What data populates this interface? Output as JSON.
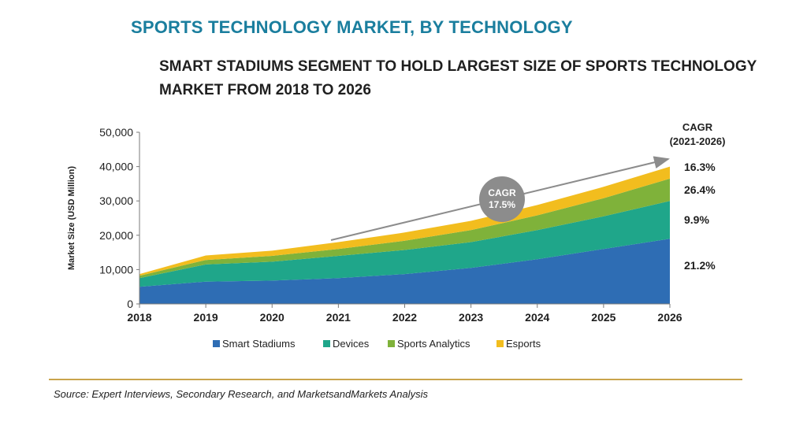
{
  "header": {
    "title": "SPORTS TECHNOLOGY MARKET, BY TECHNOLOGY",
    "subtitle": "SMART STADIUMS SEGMENT TO HOLD LARGEST SIZE OF SPORTS TECHNOLOGY MARKET FROM 2018 TO 2026"
  },
  "source": "Source: Expert Interviews, Secondary Research, and MarketsandMarkets Analysis",
  "chart_data": {
    "type": "area",
    "stacked": true,
    "x": [
      "2018",
      "2019",
      "2020",
      "2021",
      "2022",
      "2023",
      "2024",
      "2025",
      "2026"
    ],
    "ylabel": "Market Size (USD Million)",
    "ylim": [
      0,
      50000
    ],
    "yticks": [
      "0",
      "10,000",
      "20,000",
      "30,000",
      "40,000",
      "50,000"
    ],
    "series": [
      {
        "name": "Smart Stadiums",
        "color": "#2e6db4",
        "values": [
          5000,
          6500,
          6800,
          7500,
          8700,
          10500,
          13000,
          16000,
          19000
        ]
      },
      {
        "name": "Devices",
        "color": "#1fa68a",
        "values": [
          2500,
          5000,
          5500,
          6500,
          7000,
          7500,
          8500,
          9500,
          11000
        ]
      },
      {
        "name": "Sports Analytics",
        "color": "#7fb23a",
        "values": [
          700,
          1300,
          1700,
          2000,
          2700,
          3500,
          4300,
          5300,
          6500
        ]
      },
      {
        "name": "Esports",
        "color": "#f2bd1e",
        "values": [
          500,
          1300,
          1500,
          2000,
          2400,
          2700,
          3000,
          3300,
          3500
        ]
      }
    ],
    "cagr_header": [
      "CAGR",
      "(2021-2026)"
    ],
    "cagr_labels": [
      "16.3%",
      "26.4%",
      "9.9%",
      "21.2%"
    ],
    "cagr_bubble": [
      "CAGR",
      "17.5%"
    ],
    "legend_position": "bottom",
    "grid": false
  }
}
